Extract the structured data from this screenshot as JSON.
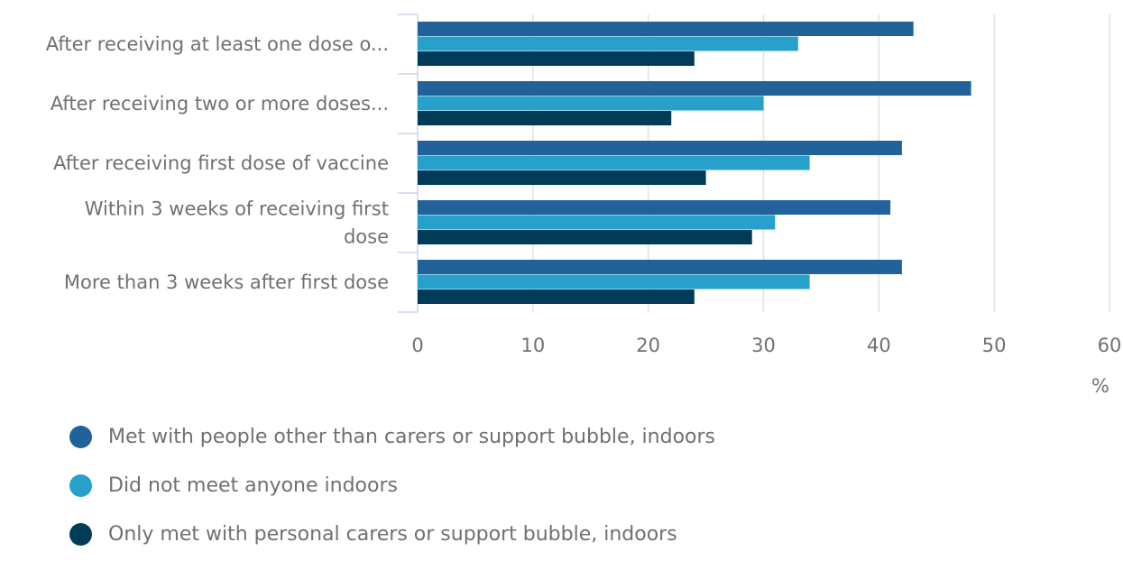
{
  "chart_data": {
    "type": "bar",
    "orientation": "horizontal",
    "categories": [
      [
        "After receiving at least one dose o..."
      ],
      [
        "After receiving two or more doses..."
      ],
      [
        "After receiving first dose of vaccine"
      ],
      [
        "Within 3 weeks of receiving first",
        "dose"
      ],
      [
        "More than 3 weeks after first dose"
      ]
    ],
    "series": [
      {
        "name": "Met with people other than carers or support bubble, indoors",
        "color": "#21629B",
        "values": [
          43,
          48,
          42,
          41,
          42
        ]
      },
      {
        "name": "Did not meet anyone indoors",
        "color": "#27A0CC",
        "values": [
          33,
          30,
          34,
          31,
          34
        ]
      },
      {
        "name": "Only met with personal carers or support bubble, indoors",
        "color": "#003C57",
        "values": [
          24,
          22,
          25,
          29,
          24
        ]
      }
    ],
    "xlim": [
      0,
      60
    ],
    "xticks": [
      0,
      10,
      20,
      30,
      40,
      50,
      60
    ],
    "xlabel": "%",
    "grid": true,
    "legend_position": "bottom"
  }
}
